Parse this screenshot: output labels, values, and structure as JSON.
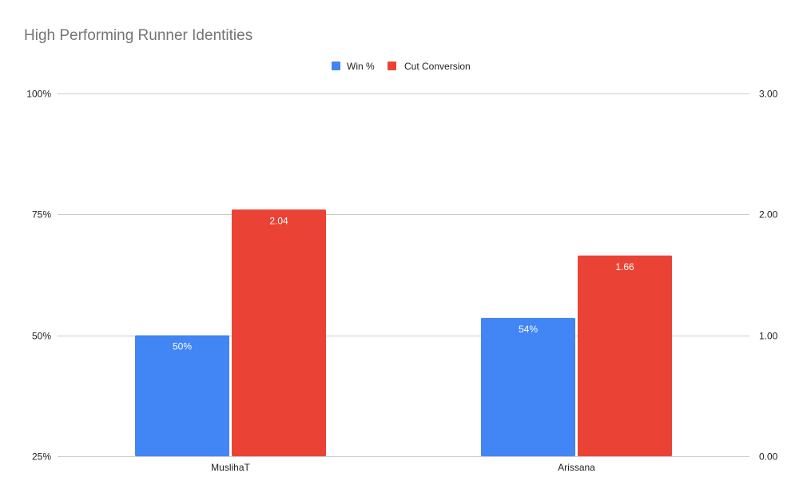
{
  "chart_data": {
    "type": "bar",
    "title": "High Performing Runner Identities",
    "categories": [
      "MuslihaT",
      "Arissana"
    ],
    "series": [
      {
        "name": "Win %",
        "axis": "left",
        "color": "#4285f4",
        "values": [
          0.5,
          0.536
        ],
        "labels": [
          "50%",
          "54%"
        ]
      },
      {
        "name": "Cut Conversion",
        "axis": "right",
        "color": "#ea4335",
        "values": [
          2.04,
          1.66
        ],
        "labels": [
          "2.04",
          "1.66"
        ]
      }
    ],
    "y_left": {
      "min": 0.25,
      "max": 1.0,
      "ticks": [
        0.25,
        0.5,
        0.75,
        1.0
      ],
      "tick_labels": [
        "25%",
        "50%",
        "75%",
        "100%"
      ]
    },
    "y_right": {
      "min": 0.0,
      "max": 3.0,
      "ticks": [
        0.0,
        1.0,
        2.0,
        3.0
      ],
      "tick_labels": [
        "0.00",
        "1.00",
        "2.00",
        "3.00"
      ]
    },
    "xlabel": "",
    "ylabel": "",
    "grid": true,
    "legend_position": "top-center"
  }
}
